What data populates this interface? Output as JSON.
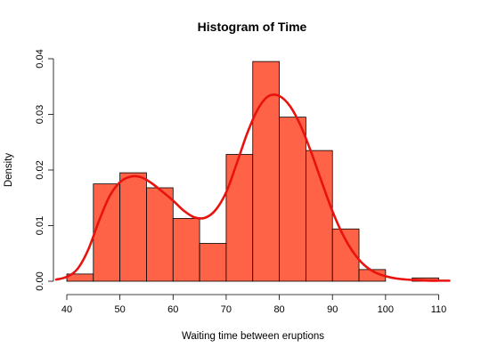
{
  "chart_data": {
    "type": "bar",
    "title": "Histogram of Time",
    "xlabel": "Waiting time between eruptions",
    "ylabel": "Density",
    "xlim": [
      40,
      110
    ],
    "ylim": [
      0,
      0.04
    ],
    "x_ticks": [
      40,
      50,
      60,
      70,
      80,
      90,
      100,
      110
    ],
    "y_ticks": [
      0.0,
      0.01,
      0.02,
      0.03,
      0.04
    ],
    "y_tick_labels": [
      "0.00",
      "0.01",
      "0.02",
      "0.03",
      "0.04"
    ],
    "bins": [
      {
        "x0": 40,
        "x1": 45,
        "density": 0.0013
      },
      {
        "x0": 45,
        "x1": 50,
        "density": 0.0175
      },
      {
        "x0": 50,
        "x1": 55,
        "density": 0.0195
      },
      {
        "x0": 55,
        "x1": 60,
        "density": 0.0168
      },
      {
        "x0": 60,
        "x1": 65,
        "density": 0.0113
      },
      {
        "x0": 65,
        "x1": 70,
        "density": 0.0068
      },
      {
        "x0": 70,
        "x1": 75,
        "density": 0.0228
      },
      {
        "x0": 75,
        "x1": 80,
        "density": 0.0395
      },
      {
        "x0": 80,
        "x1": 85,
        "density": 0.0295
      },
      {
        "x0": 85,
        "x1": 90,
        "density": 0.0235
      },
      {
        "x0": 90,
        "x1": 95,
        "density": 0.0094
      },
      {
        "x0": 95,
        "x1": 100,
        "density": 0.0021
      },
      {
        "x0": 100,
        "x1": 105,
        "density": 0.0
      },
      {
        "x0": 105,
        "x1": 110,
        "density": 0.0006
      }
    ],
    "density_curve": {
      "x": [
        38,
        40,
        42,
        44,
        46,
        48,
        50,
        52,
        54,
        56,
        58,
        60,
        62,
        64,
        66,
        68,
        70,
        72,
        74,
        76,
        78,
        80,
        82,
        84,
        86,
        88,
        90,
        92,
        94,
        96,
        98,
        100,
        102,
        104,
        106,
        108,
        110,
        112
      ],
      "y": [
        0.0003,
        0.0008,
        0.0022,
        0.0056,
        0.0107,
        0.0152,
        0.0178,
        0.0188,
        0.0187,
        0.0176,
        0.0161,
        0.0145,
        0.0127,
        0.0115,
        0.0114,
        0.0128,
        0.016,
        0.0212,
        0.0267,
        0.031,
        0.0333,
        0.0333,
        0.0315,
        0.028,
        0.0232,
        0.0178,
        0.0126,
        0.0083,
        0.0051,
        0.0029,
        0.0016,
        0.0009,
        0.0005,
        0.0003,
        0.0002,
        0.0001,
        0.0001,
        0.0001
      ]
    },
    "colors": {
      "bar_fill": "#FF6347",
      "bar_stroke": "#000000",
      "curve": "#E8130E"
    }
  }
}
